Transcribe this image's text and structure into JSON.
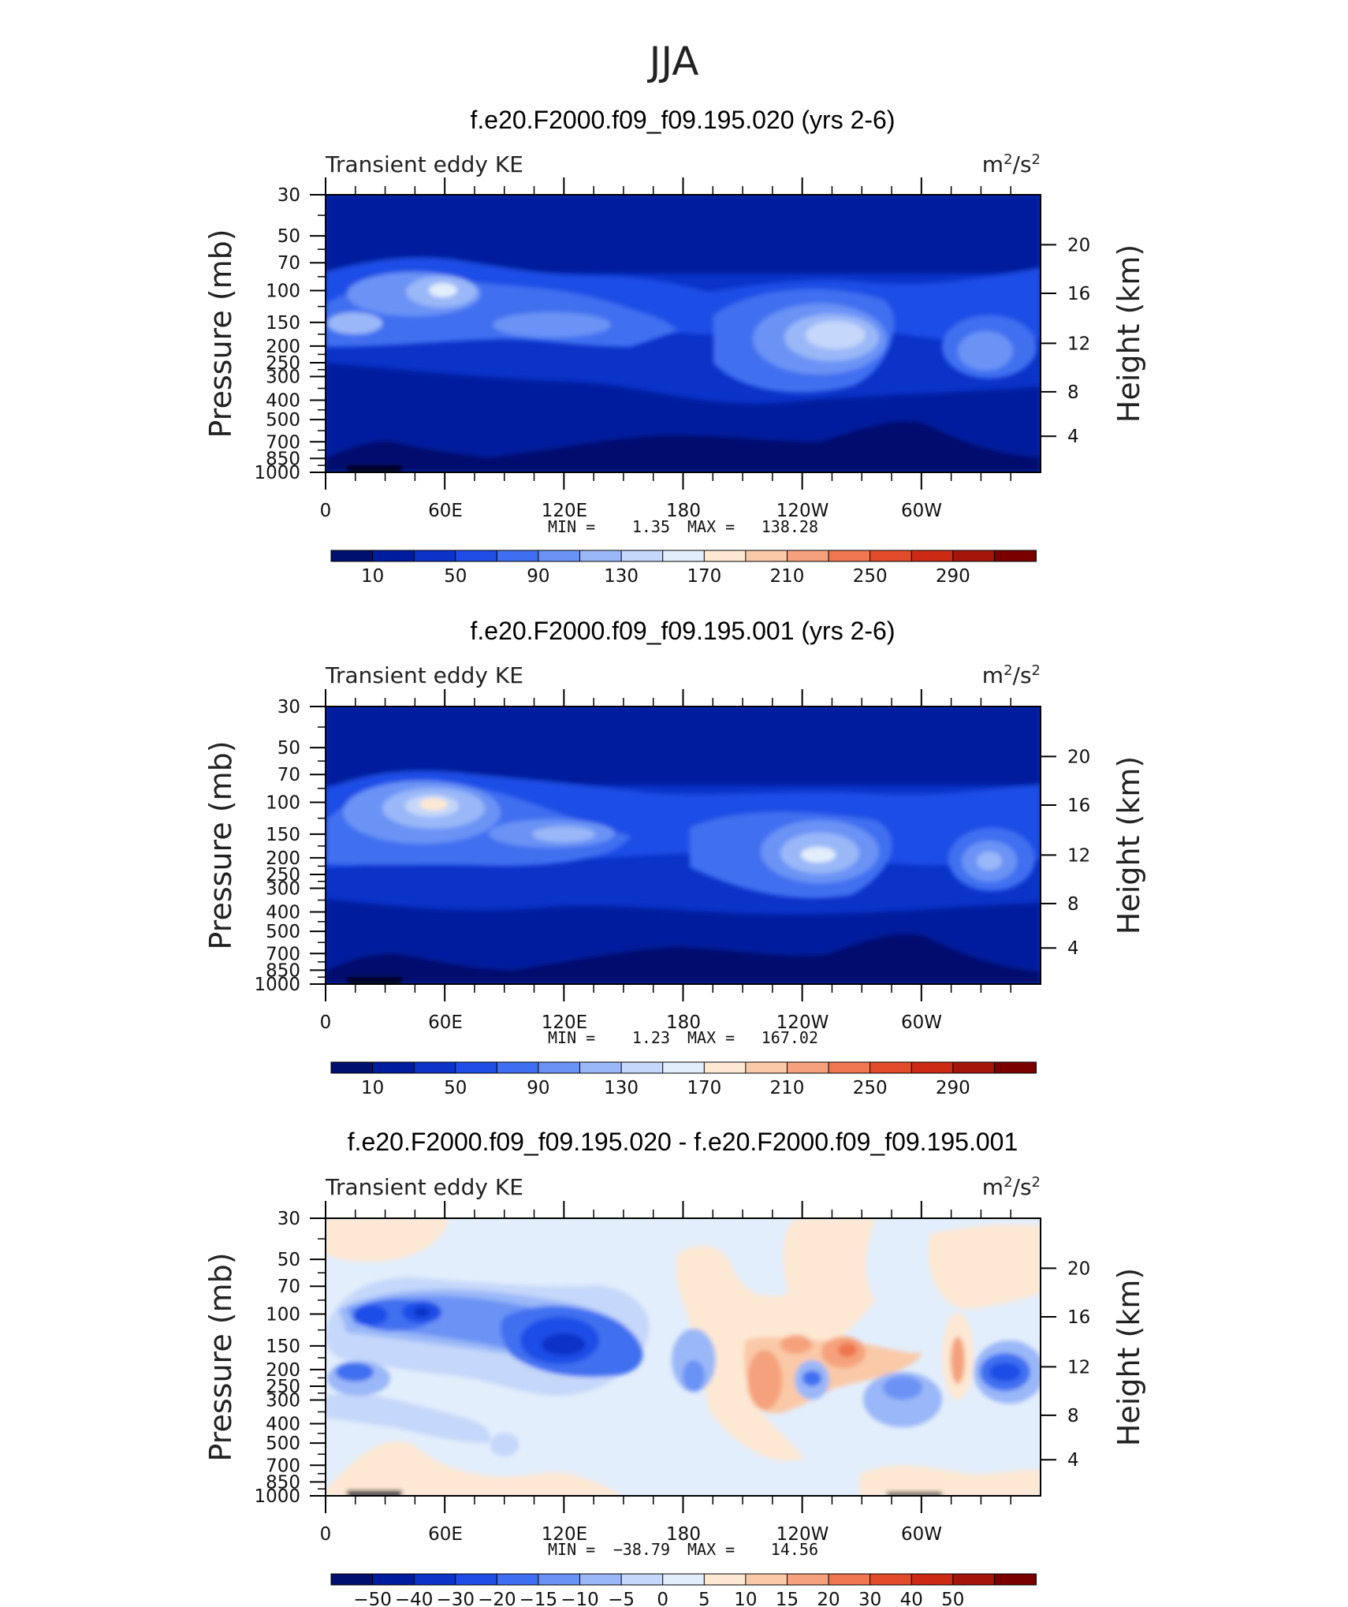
{
  "figure_title": "JJA",
  "chart_data": [
    {
      "type": "heatmap",
      "title": "f.e20.F2000.f09_f09.195.020 (yrs 2-6)",
      "left_label": "Transient eddy KE",
      "units_base": "m",
      "units_exp": "2",
      "units_mid": "/s",
      "units_exp2": "2",
      "ylabel": "Pressure (mb)",
      "y2label": "Height (km)",
      "x_ticks": [
        "0",
        "60E",
        "120E",
        "180",
        "120W",
        "60W"
      ],
      "y_ticks": [
        "30",
        "50",
        "70",
        "100",
        "150",
        "200",
        "250",
        "300",
        "400",
        "500",
        "700",
        "850",
        "1000"
      ],
      "y2_ticks": [
        "20",
        "16",
        "12",
        "8",
        "4"
      ],
      "min_label": "MIN =",
      "min_value": "1.35",
      "max_label": "MAX =",
      "max_value": "138.28",
      "colorbar_labels": [
        "10",
        "50",
        "90",
        "130",
        "170",
        "210",
        "250",
        "290"
      ],
      "colorbar_colors": [
        "#00106e",
        "#001c9e",
        "#0a33c8",
        "#1f4de6",
        "#3f6ff0",
        "#6a93f5",
        "#9ab7f8",
        "#c5d7fa",
        "#e3eefc",
        "#fde8d3",
        "#fac9a8",
        "#f5a27c",
        "#ef7650",
        "#e34c2a",
        "#cc2a14",
        "#a4160a",
        "#7a0000"
      ],
      "zlim": [
        1.35,
        138.28
      ]
    },
    {
      "type": "heatmap",
      "title": "f.e20.F2000.f09_f09.195.001 (yrs 2-6)",
      "left_label": "Transient eddy KE",
      "units_base": "m",
      "units_exp": "2",
      "units_mid": "/s",
      "units_exp2": "2",
      "ylabel": "Pressure (mb)",
      "y2label": "Height (km)",
      "x_ticks": [
        "0",
        "60E",
        "120E",
        "180",
        "120W",
        "60W"
      ],
      "y_ticks": [
        "30",
        "50",
        "70",
        "100",
        "150",
        "200",
        "250",
        "300",
        "400",
        "500",
        "700",
        "850",
        "1000"
      ],
      "y2_ticks": [
        "20",
        "16",
        "12",
        "8",
        "4"
      ],
      "min_label": "MIN =",
      "min_value": "1.23",
      "max_label": "MAX =",
      "max_value": "167.02",
      "colorbar_labels": [
        "10",
        "50",
        "90",
        "130",
        "170",
        "210",
        "250",
        "290"
      ],
      "colorbar_colors": [
        "#00106e",
        "#001c9e",
        "#0a33c8",
        "#1f4de6",
        "#3f6ff0",
        "#6a93f5",
        "#9ab7f8",
        "#c5d7fa",
        "#e3eefc",
        "#fde8d3",
        "#fac9a8",
        "#f5a27c",
        "#ef7650",
        "#e34c2a",
        "#cc2a14",
        "#a4160a",
        "#7a0000"
      ],
      "zlim": [
        1.23,
        167.02
      ]
    },
    {
      "type": "heatmap",
      "title": "f.e20.F2000.f09_f09.195.020 - f.e20.F2000.f09_f09.195.001",
      "left_label": "Transient eddy KE",
      "units_base": "m",
      "units_exp": "2",
      "units_mid": "/s",
      "units_exp2": "2",
      "ylabel": "Pressure (mb)",
      "y2label": "Height (km)",
      "x_ticks": [
        "0",
        "60E",
        "120E",
        "180",
        "120W",
        "60W"
      ],
      "y_ticks": [
        "30",
        "50",
        "70",
        "100",
        "150",
        "200",
        "250",
        "300",
        "400",
        "500",
        "700",
        "850",
        "1000"
      ],
      "y2_ticks": [
        "20",
        "16",
        "12",
        "8",
        "4"
      ],
      "min_label": "MIN =",
      "min_value": "−38.79",
      "max_label": "MAX =",
      "max_value": "14.56",
      "colorbar_labels": [
        "−50",
        "−40",
        "−30",
        "−20",
        "−15",
        "−10",
        "−5",
        "0",
        "5",
        "10",
        "15",
        "20",
        "30",
        "40",
        "50"
      ],
      "colorbar_colors": [
        "#00106e",
        "#001c9e",
        "#0a33c8",
        "#1f4de6",
        "#3f6ff0",
        "#6a93f5",
        "#9ab7f8",
        "#c5d7fa",
        "#e3eefc",
        "#fde8d3",
        "#fac9a8",
        "#f5a27c",
        "#ef7650",
        "#e34c2a",
        "#cc2a14",
        "#a4160a",
        "#7a0000"
      ],
      "zlim": [
        -38.79,
        14.56
      ]
    }
  ]
}
